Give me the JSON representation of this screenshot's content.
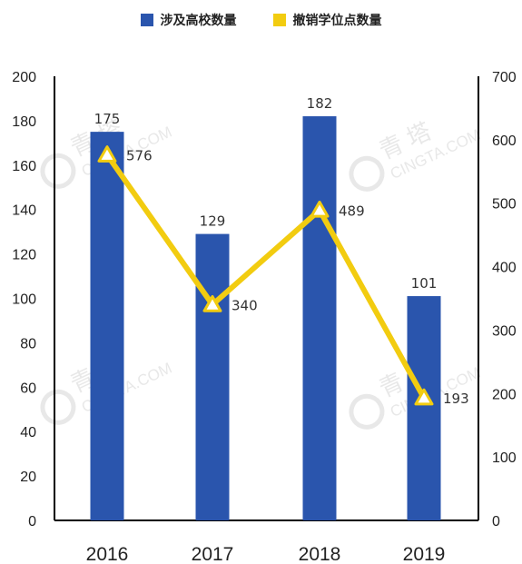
{
  "legend": {
    "bar_label": "涉及高校数量",
    "line_label": "撤销学位点数量"
  },
  "watermark": {
    "brand": "青 塔",
    "site": "CINGTA.COM"
  },
  "colors": {
    "bar": "#2a55ad",
    "line": "#f2cc10",
    "axis": "#000000"
  },
  "chart_data": {
    "type": "bar",
    "categories": [
      "2016",
      "2017",
      "2018",
      "2019"
    ],
    "series": [
      {
        "name": "涉及高校数量",
        "type": "bar",
        "axis": "left",
        "values": [
          175,
          129,
          182,
          101
        ]
      },
      {
        "name": "撤销学位点数量",
        "type": "line",
        "axis": "right",
        "values": [
          576,
          340,
          489,
          193
        ]
      }
    ],
    "y_left": {
      "min": 0,
      "max": 200,
      "ticks": [
        "0",
        "20",
        "40",
        "60",
        "80",
        "100",
        "120",
        "140",
        "160",
        "180",
        "200"
      ]
    },
    "y_right": {
      "min": 0,
      "max": 700,
      "ticks": [
        "0",
        "100",
        "200",
        "300",
        "400",
        "500",
        "600",
        "700"
      ]
    },
    "grid": false,
    "legend_position": "top"
  }
}
